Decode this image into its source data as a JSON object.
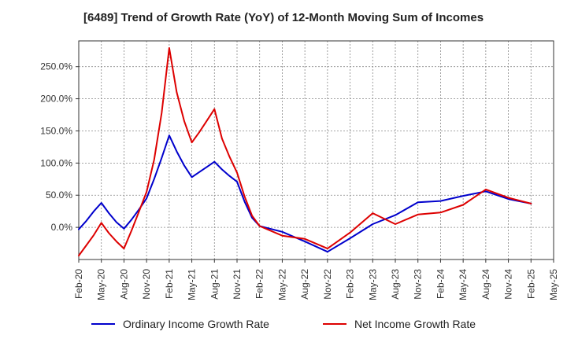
{
  "chart_data": {
    "type": "line",
    "title": "[6489]  Trend of Growth Rate (YoY) of 12-Month Moving Sum of Incomes",
    "xlabel": "",
    "ylabel": "",
    "x_ticks": [
      "Feb-20",
      "May-20",
      "Aug-20",
      "Nov-20",
      "Feb-21",
      "May-21",
      "Aug-21",
      "Nov-21",
      "Feb-22",
      "May-22",
      "Aug-22",
      "Nov-22",
      "Feb-23",
      "May-23",
      "Aug-23",
      "Nov-23",
      "Feb-24",
      "May-24",
      "Aug-24",
      "Nov-24",
      "Feb-25",
      "May-25"
    ],
    "y_ticks": [
      "0.0%",
      "50.0%",
      "100.0%",
      "150.0%",
      "200.0%",
      "250.0%"
    ],
    "y_tick_values": [
      0,
      50,
      100,
      150,
      200,
      250
    ],
    "ylim": [
      -50,
      290
    ],
    "x_range": [
      "2020-02",
      "2025-05"
    ],
    "grid": true,
    "legend_position": "bottom",
    "series": [
      {
        "name": "Ordinary Income Growth Rate",
        "color": "#0000cc",
        "x": [
          "2020-02",
          "2020-03",
          "2020-04",
          "2020-05",
          "2020-06",
          "2020-07",
          "2020-08",
          "2020-09",
          "2020-10",
          "2020-11",
          "2020-12",
          "2021-01",
          "2021-02",
          "2021-03",
          "2021-04",
          "2021-05",
          "2021-06",
          "2021-07",
          "2021-08",
          "2021-09",
          "2021-10",
          "2021-11",
          "2021-12",
          "2022-01",
          "2022-02",
          "2022-05",
          "2022-08",
          "2022-11",
          "2023-02",
          "2023-05",
          "2023-08",
          "2023-11",
          "2024-02",
          "2024-05",
          "2024-08",
          "2024-11",
          "2025-02"
        ],
        "values": [
          -3,
          10,
          25,
          38,
          22,
          8,
          -2,
          12,
          28,
          45,
          75,
          108,
          143,
          118,
          96,
          78,
          86,
          94,
          102,
          90,
          80,
          71,
          40,
          15,
          2,
          -7,
          -22,
          -38,
          -17,
          5,
          19,
          39,
          41,
          49,
          56,
          44,
          37
        ]
      },
      {
        "name": "Net Income Growth Rate",
        "color": "#dd0000",
        "x": [
          "2020-02",
          "2020-03",
          "2020-04",
          "2020-05",
          "2020-06",
          "2020-07",
          "2020-08",
          "2020-09",
          "2020-10",
          "2020-11",
          "2020-12",
          "2021-01",
          "2021-02",
          "2021-03",
          "2021-04",
          "2021-05",
          "2021-06",
          "2021-07",
          "2021-08",
          "2021-09",
          "2021-10",
          "2021-11",
          "2021-12",
          "2022-01",
          "2022-02",
          "2022-05",
          "2022-08",
          "2022-11",
          "2023-02",
          "2023-05",
          "2023-08",
          "2023-11",
          "2024-02",
          "2024-05",
          "2024-08",
          "2024-11",
          "2025-02"
        ],
        "values": [
          -44,
          -28,
          -12,
          7,
          -9,
          -22,
          -33,
          -5,
          25,
          55,
          105,
          178,
          279,
          210,
          165,
          132,
          148,
          166,
          184,
          138,
          110,
          85,
          48,
          18,
          2,
          -13,
          -18,
          -33,
          -8,
          22,
          5,
          20,
          23,
          35,
          59,
          46,
          37
        ]
      }
    ]
  }
}
